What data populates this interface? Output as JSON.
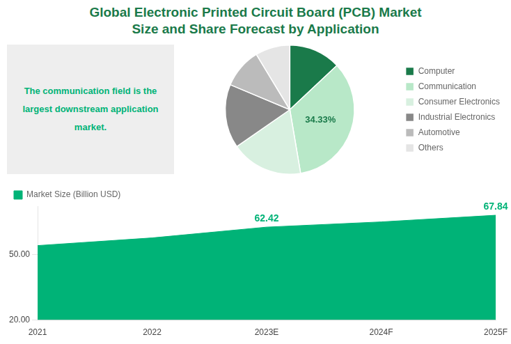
{
  "chart_data": [
    {
      "type": "pie",
      "title": "Global Electronic Printed Circuit Board (PCB) Market\nSize and Share Forecast by Application",
      "annotations": [
        "The communication field is the\nlargest downstream application\nmarket."
      ],
      "categories": [
        "Computer",
        "Communication",
        "Consumer Electronics",
        "Industrial Electronics",
        "Automotive",
        "Others"
      ],
      "values": [
        13,
        34.33,
        18,
        16,
        10,
        8.67
      ],
      "colors": [
        "#1a7a4a",
        "#b8e8c8",
        "#d8f0e0",
        "#888888",
        "#bbbbbb",
        "#e5e5e5"
      ],
      "legend": "right",
      "data_labels": true,
      "value_labels": [
        null,
        "34.33%",
        null,
        null,
        null,
        null
      ]
    },
    {
      "type": "area",
      "x": [
        2021,
        2022,
        2023,
        2024,
        2025
      ],
      "xlim": [
        2021,
        2025
      ],
      "xticks": [
        2021,
        2022,
        {
          "value": 2023,
          "label": "2023E"
        },
        {
          "value": 2024,
          "label": "2024F"
        },
        {
          "value": 2025,
          "label": "2025F"
        }
      ],
      "ylim": [
        20,
        72
      ],
      "yticks": [
        {
          "value": 20,
          "label": "20.00"
        },
        {
          "value": 50,
          "label": "50.00"
        }
      ],
      "series": [
        {
          "name": "Market Size (Billion USD)",
          "color": "#00b377",
          "values": [
            54.0,
            57.5,
            62.42,
            64.8,
            67.84
          ],
          "value_labels": [
            null,
            null,
            "62.42",
            null,
            "67.84"
          ]
        }
      ],
      "data_labels": true,
      "legend": "upper left",
      "grid": true
    }
  ]
}
